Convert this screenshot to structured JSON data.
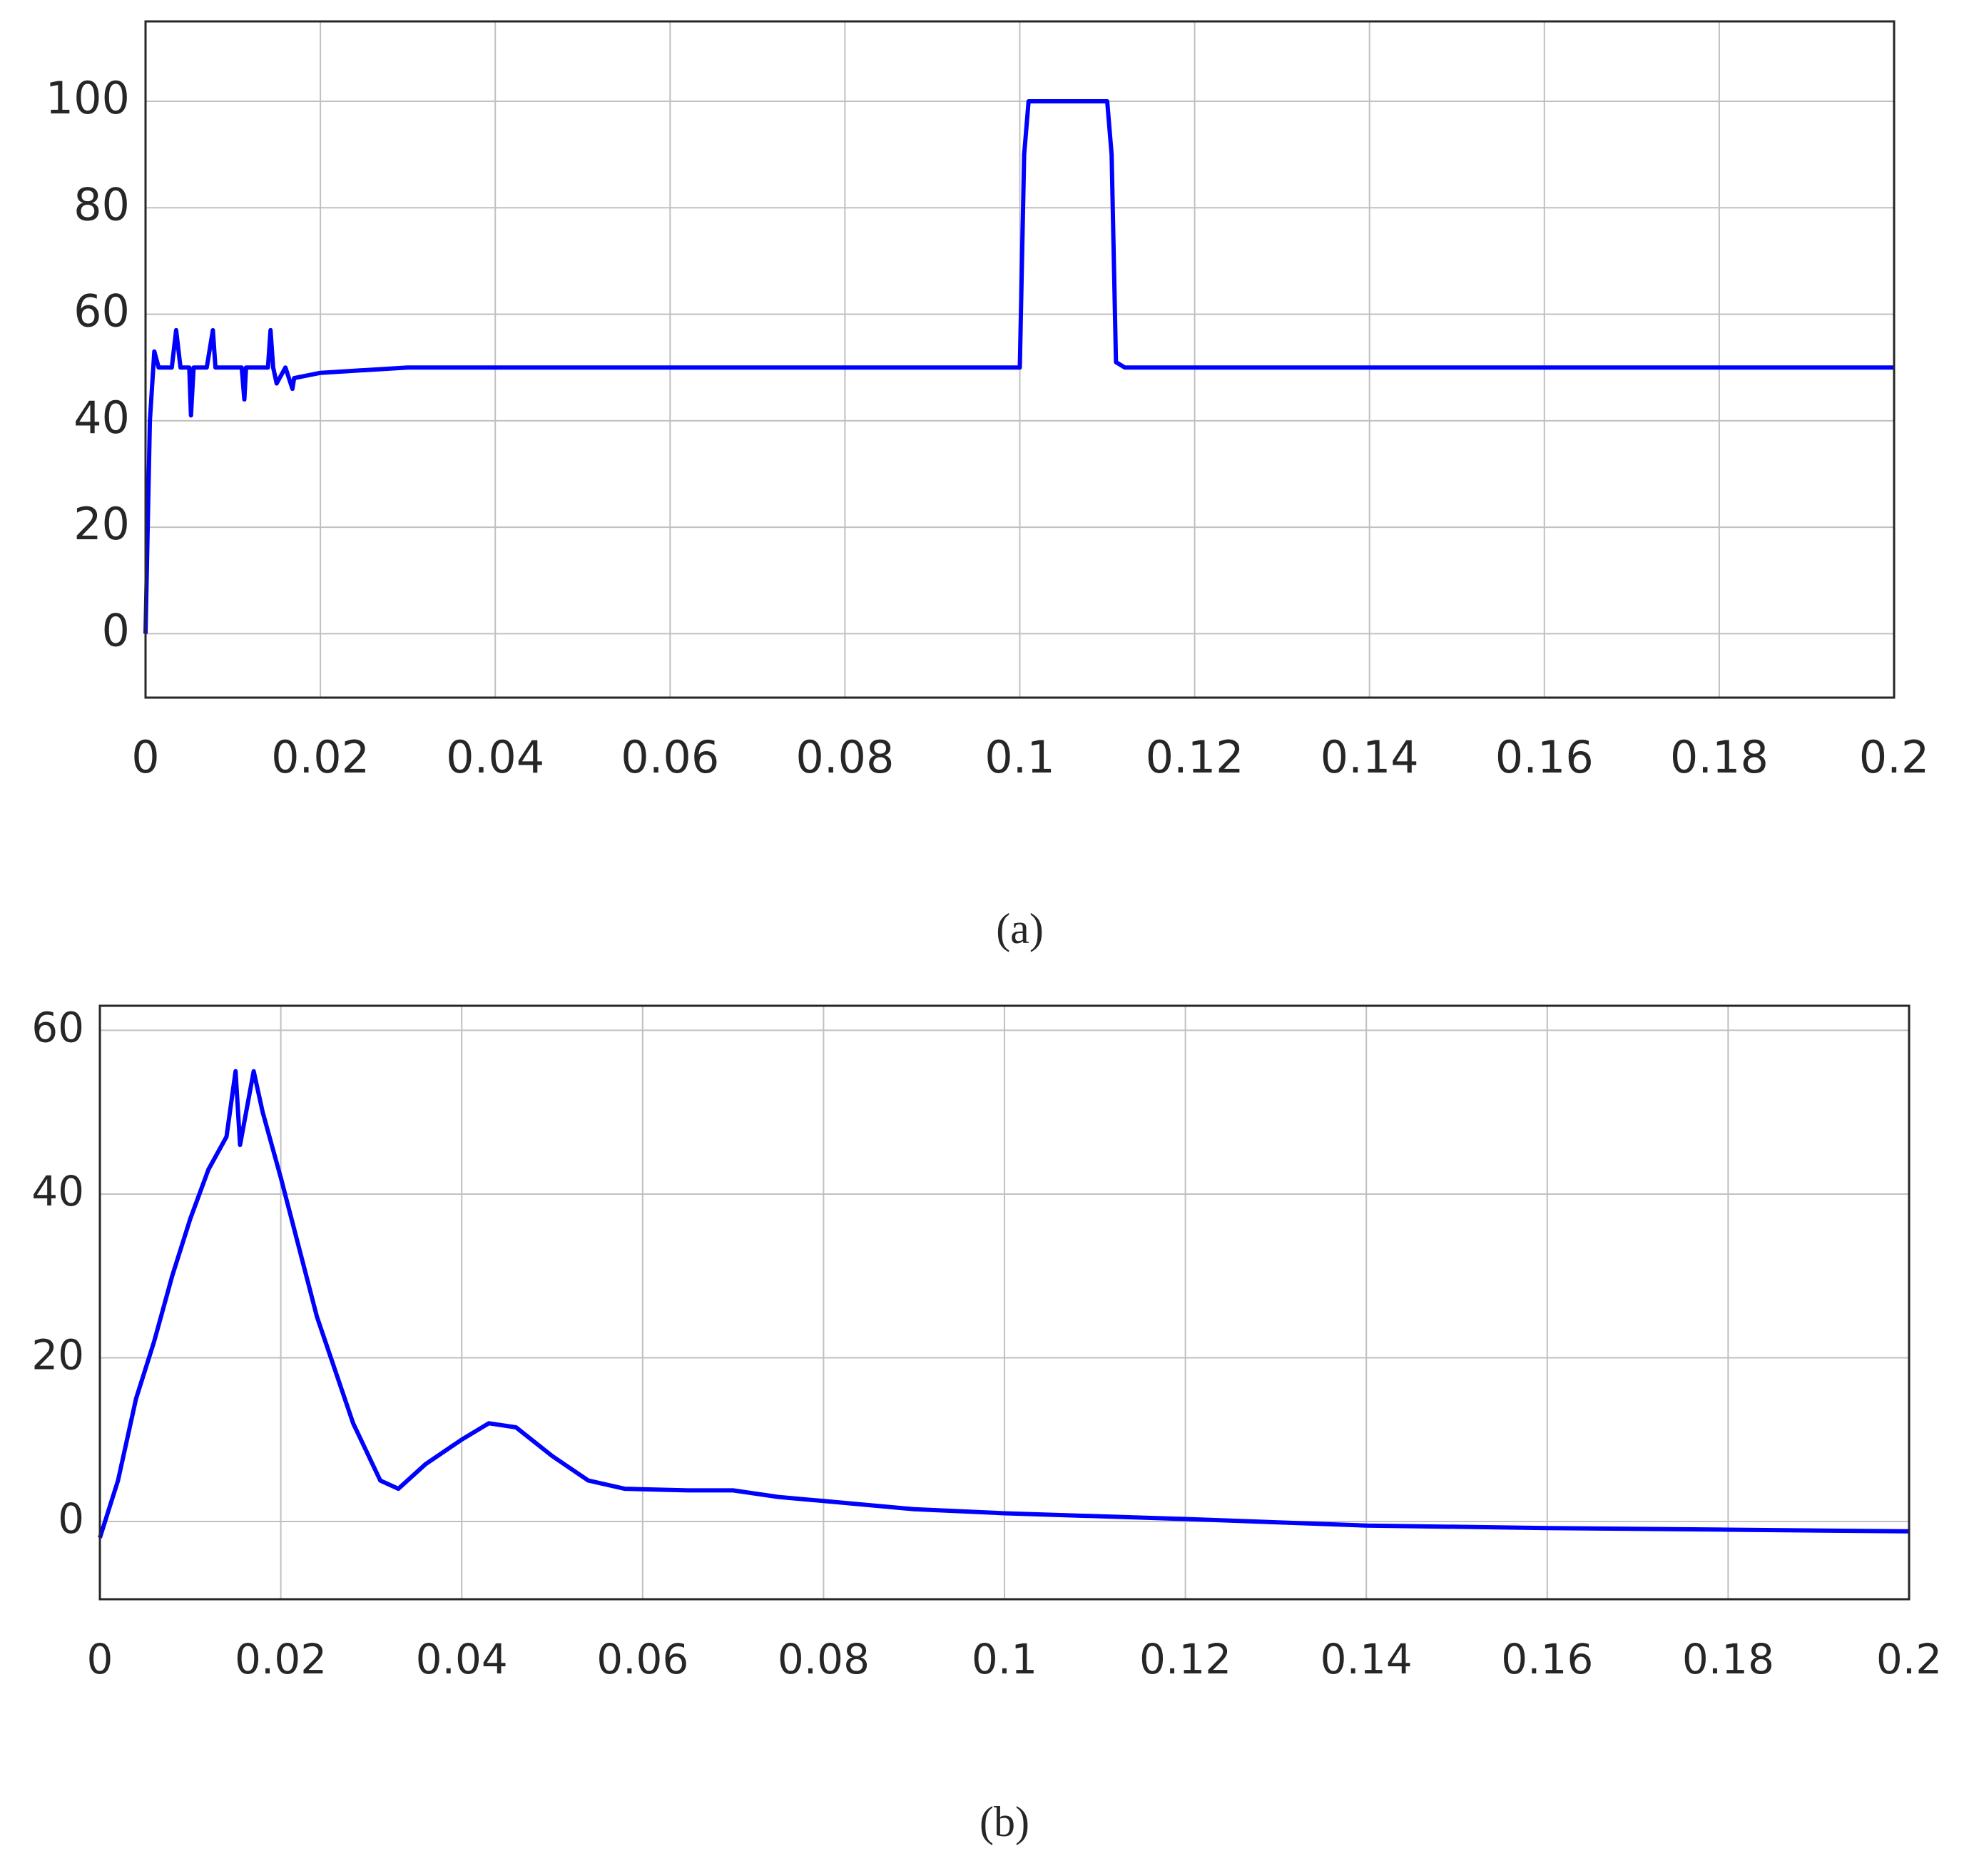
{
  "chart_data": [
    {
      "type": "line",
      "caption": "(a)",
      "xlim": [
        0,
        0.2
      ],
      "xticks": [
        0,
        0.02,
        0.04,
        0.06,
        0.08,
        0.1,
        0.12,
        0.14,
        0.16,
        0.18,
        0.2
      ],
      "ylim": [
        -12,
        115
      ],
      "yticks": [
        0,
        20,
        40,
        60,
        80,
        100
      ],
      "grid": true,
      "series": [
        {
          "color": "#0000ff",
          "x": [
            0,
            0.0005,
            0.001,
            0.0015,
            0.003,
            0.0035,
            0.004,
            0.005,
            0.0052,
            0.0055,
            0.007,
            0.0077,
            0.008,
            0.011,
            0.0113,
            0.0115,
            0.014,
            0.0143,
            0.0146,
            0.015,
            0.016,
            0.0168,
            0.017,
            0.02,
            0.03,
            0.1,
            0.1005,
            0.101,
            0.11,
            0.1105,
            0.111,
            0.112,
            0.2
          ],
          "values": [
            0,
            40,
            53,
            50,
            50,
            57,
            50,
            50,
            41,
            50,
            50,
            57,
            50,
            50,
            44,
            50,
            50,
            57,
            50,
            47,
            50,
            46,
            48,
            49,
            50,
            50,
            90,
            100,
            100,
            90,
            51,
            50,
            50
          ]
        }
      ]
    },
    {
      "type": "line",
      "caption": "(b)",
      "xlim": [
        0,
        0.2
      ],
      "xticks": [
        0,
        0.02,
        0.04,
        0.06,
        0.08,
        0.1,
        0.12,
        0.14,
        0.16,
        0.18,
        0.2
      ],
      "ylim": [
        -9.5,
        63
      ],
      "yticks": [
        0,
        20,
        40,
        60
      ],
      "grid": true,
      "series": [
        {
          "color": "#0000ff",
          "x": [
            0,
            0.002,
            0.004,
            0.006,
            0.008,
            0.01,
            0.012,
            0.014,
            0.015,
            0.0155,
            0.017,
            0.018,
            0.02,
            0.024,
            0.028,
            0.031,
            0.033,
            0.036,
            0.04,
            0.043,
            0.046,
            0.05,
            0.054,
            0.058,
            0.065,
            0.07,
            0.075,
            0.08,
            0.09,
            0.1,
            0.12,
            0.14,
            0.16,
            0.18,
            0.2
          ],
          "values": [
            -2,
            5,
            15,
            22,
            30,
            37,
            43,
            47,
            55,
            46,
            55,
            50,
            42,
            25,
            12,
            5,
            4,
            7,
            10,
            12,
            11.5,
            8,
            5,
            4,
            3.8,
            3.8,
            3,
            2.5,
            1.5,
            1,
            0.3,
            -0.5,
            -0.8,
            -1,
            -1.2
          ]
        }
      ]
    }
  ]
}
